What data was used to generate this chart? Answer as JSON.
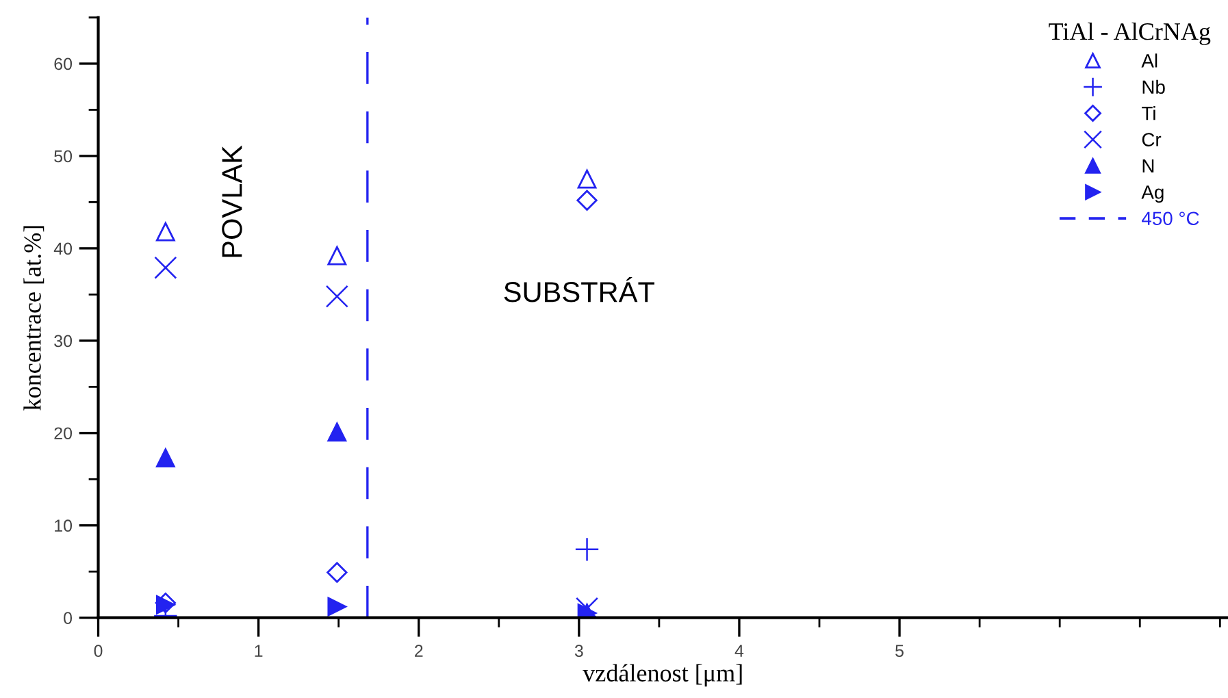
{
  "chart_data": {
    "type": "scatter",
    "xlabel": "vzdálenost [μm]",
    "ylabel": "koncentrace [at.%]",
    "legend_title": "TiAl - AlCrNAg",
    "xlim": [
      0,
      7.05
    ],
    "ylim": [
      0,
      65
    ],
    "xticks": [
      0,
      1,
      2,
      3,
      4,
      5
    ],
    "yticks": [
      0,
      10,
      20,
      30,
      40,
      50,
      60
    ],
    "grid": false,
    "legend": "top right",
    "series": [
      {
        "name": "Al",
        "color": "#2323f0",
        "marker": "triangle",
        "x": [
          0.42,
          1.49,
          3.05
        ],
        "values": [
          41.8,
          39.2,
          47.5
        ]
      },
      {
        "name": "Nb",
        "color": "#2323f0",
        "marker": "plus",
        "x": [
          0.42,
          1.49,
          3.05
        ],
        "values": [
          0.2,
          null,
          7.4
        ]
      },
      {
        "name": "Ti",
        "color": "#2323f0",
        "marker": "diamond",
        "x": [
          0.42,
          1.49,
          3.05
        ],
        "values": [
          1.6,
          4.9,
          45.2
        ]
      },
      {
        "name": "Cr",
        "color": "#2323f0",
        "marker": "cross",
        "x": [
          0.42,
          1.49,
          3.05
        ],
        "values": [
          37.9,
          34.8,
          1.0
        ]
      },
      {
        "name": "N",
        "color": "#2323f0",
        "marker": "triangle",
        "x": [
          0.42,
          1.49,
          3.05
        ],
        "values": [
          17.3,
          20.1,
          0.5
        ]
      },
      {
        "name": "Ag",
        "color": "#2323f0",
        "marker": "triangle",
        "x": [
          0.42,
          1.49,
          3.05
        ],
        "values": [
          1.4,
          1.2,
          0.5
        ]
      }
    ],
    "ref_lines": [
      {
        "axis": "x",
        "value": 1.68,
        "label": "450 °C",
        "color": "#2323f0",
        "line_style": "dashed"
      }
    ],
    "annotations": [
      "POVLAK",
      "SUBSTRÁT"
    ]
  }
}
